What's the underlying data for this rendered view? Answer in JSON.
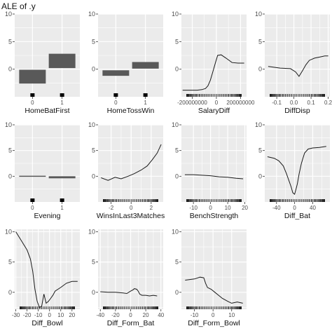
{
  "figure": {
    "title": "ALE of .y",
    "panel_background": "#ebebeb",
    "grid_color": "#ffffff",
    "line_color": "#1a1a1a",
    "bar_color": "#595959"
  },
  "chart_data": [
    {
      "type": "bar",
      "xlabel": "HomeBatFirst",
      "categories": [
        "0",
        "1"
      ],
      "boxes": [
        {
          "x": 0,
          "low": -2.6,
          "high": -0.1
        },
        {
          "x": 1,
          "low": 0.2,
          "high": 2.8
        }
      ],
      "ylim": [
        -5,
        10
      ],
      "yticks": [
        0,
        5,
        10
      ]
    },
    {
      "type": "bar",
      "xlabel": "HomeTossWin",
      "categories": [
        "0",
        "1"
      ],
      "boxes": [
        {
          "x": 0,
          "low": -1.2,
          "high": -0.2
        },
        {
          "x": 1,
          "low": 0.1,
          "high": 1.3
        }
      ],
      "ylim": [
        -5,
        10
      ],
      "yticks": [
        0,
        5,
        10
      ]
    },
    {
      "type": "line",
      "xlabel": "SalaryDiff",
      "x": [
        -280000000,
        -220000000,
        -160000000,
        -120000000,
        -90000000,
        -70000000,
        -50000000,
        -30000000,
        -10000000,
        10000000,
        40000000,
        80000000,
        130000000,
        180000000,
        230000000
      ],
      "y": [
        -3.8,
        -3.8,
        -3.8,
        -3.7,
        -3.5,
        -3.0,
        -2.0,
        -0.5,
        1.0,
        2.5,
        2.6,
        2.0,
        1.2,
        1.1,
        1.1
      ],
      "xlim": [
        -290000000,
        250000000
      ],
      "ylim": [
        -5,
        10
      ],
      "xticks": [
        {
          "value": -200000000,
          "label": "-200000000"
        },
        {
          "value": 0,
          "label": "0"
        },
        {
          "value": 200000000,
          "label": "200000000"
        }
      ],
      "yticks": [
        0,
        5,
        10
      ]
    },
    {
      "type": "line",
      "xlabel": "DiffDisp",
      "x": [
        -0.15,
        -0.08,
        -0.02,
        0.01,
        0.03,
        0.05,
        0.07,
        0.09,
        0.12,
        0.15,
        0.18,
        0.2
      ],
      "y": [
        0.5,
        0.2,
        0.1,
        -0.5,
        -1.3,
        -0.3,
        0.8,
        1.6,
        2.0,
        2.2,
        2.4,
        2.4
      ],
      "xlim": [
        -0.17,
        0.21
      ],
      "ylim": [
        -5,
        10
      ],
      "xticks": [
        {
          "value": -0.1,
          "label": "-0.1"
        },
        {
          "value": 0.0,
          "label": "0.0"
        },
        {
          "value": 0.1,
          "label": "0.1"
        },
        {
          "value": 0.2,
          "label": "0.2"
        }
      ],
      "yticks": [
        0,
        5,
        10
      ]
    },
    {
      "type": "bar",
      "xlabel": "Evening",
      "categories": [
        "0",
        "1"
      ],
      "boxes": [
        {
          "x": 0,
          "low": 0.0,
          "high": 0.1
        },
        {
          "x": 1,
          "low": -0.4,
          "high": 0.0
        }
      ],
      "ylim": [
        -5,
        10
      ],
      "yticks": [
        0,
        5,
        10
      ]
    },
    {
      "type": "line",
      "xlabel": "WinsInLast3Matches",
      "x": [
        -3,
        -2.3,
        -1.6,
        -1,
        -0.3,
        0.3,
        1,
        1.6,
        2.1,
        2.6,
        3
      ],
      "y": [
        -0.3,
        -0.8,
        -0.2,
        -0.5,
        0.0,
        0.5,
        1.2,
        2.0,
        3.2,
        4.5,
        6.2
      ],
      "xlim": [
        -3.3,
        3.2
      ],
      "ylim": [
        -5,
        10
      ],
      "xticks": [
        {
          "value": -2,
          "label": "-2"
        },
        {
          "value": 0,
          "label": "0"
        },
        {
          "value": 2,
          "label": "2"
        }
      ],
      "yticks": [
        0,
        5,
        10
      ]
    },
    {
      "type": "line",
      "xlabel": "BenchStrength",
      "x": [
        -15,
        -10,
        -5,
        0,
        5,
        10,
        15,
        19
      ],
      "y": [
        0.3,
        0.3,
        0.2,
        0.1,
        -0.1,
        -0.2,
        -0.4,
        -0.5
      ],
      "xlim": [
        -17,
        21
      ],
      "ylim": [
        -5,
        10
      ],
      "xticks": [
        {
          "value": -10,
          "label": "-10"
        },
        {
          "value": 0,
          "label": "0"
        },
        {
          "value": 10,
          "label": "10"
        },
        {
          "value": 20,
          "label": "20"
        }
      ],
      "yticks": [
        0,
        5,
        10
      ]
    },
    {
      "type": "line",
      "xlabel": "Diff_Bat",
      "x": [
        -60,
        -45,
        -35,
        -25,
        -18,
        -12,
        -8,
        -4,
        0,
        3,
        6,
        10,
        15,
        22,
        30,
        40,
        55,
        70
      ],
      "y": [
        3.8,
        3.5,
        3.0,
        2.0,
        0.5,
        -1.0,
        -2.0,
        -3.2,
        -3.5,
        -2.5,
        -1.5,
        0.5,
        2.5,
        4.5,
        5.3,
        5.5,
        5.6,
        5.8
      ],
      "xlim": [
        -66,
        78
      ],
      "ylim": [
        -5,
        10
      ],
      "xticks": [
        {
          "value": -40,
          "label": "-40"
        },
        {
          "value": 0,
          "label": "0"
        },
        {
          "value": 40,
          "label": "40"
        },
        {
          "value": 80,
          "label": "80"
        }
      ],
      "yticks": [
        0,
        5,
        10
      ]
    },
    {
      "type": "line",
      "xlabel": "Diff_Bowl",
      "x": [
        -30,
        -25,
        -20,
        -17,
        -15,
        -13,
        -11,
        -9,
        -7,
        -5,
        -3,
        -1,
        1,
        3,
        5,
        10,
        15,
        20,
        25
      ],
      "y": [
        10.0,
        8.5,
        7.0,
        5.5,
        3.5,
        0.5,
        -1.5,
        -2.5,
        -2.3,
        -0.3,
        -1.8,
        -1.5,
        -1.0,
        -0.5,
        0.2,
        0.8,
        1.5,
        1.8,
        1.8
      ],
      "xlim": [
        -31,
        27
      ],
      "ylim": [
        -2.8,
        10.4
      ],
      "xticks": [
        {
          "value": -30,
          "label": "-30"
        },
        {
          "value": -20,
          "label": "-20"
        },
        {
          "value": -10,
          "label": "-10"
        },
        {
          "value": 0,
          "label": "0"
        },
        {
          "value": 10,
          "label": "10"
        },
        {
          "value": 20,
          "label": "20"
        }
      ],
      "yticks": [
        0,
        5,
        10
      ]
    },
    {
      "type": "line",
      "xlabel": "Diff_Form_Bat",
      "x": [
        -40,
        -30,
        -20,
        -10,
        -5,
        0,
        3,
        5,
        8,
        10,
        12,
        15,
        20,
        25,
        30,
        35
      ],
      "y": [
        0.1,
        0.0,
        0.0,
        -0.1,
        -0.2,
        0.2,
        0.4,
        0.6,
        0.5,
        0.2,
        -0.3,
        -0.5,
        -0.5,
        -0.6,
        -0.5,
        -0.6
      ],
      "xlim": [
        -43,
        43
      ],
      "ylim": [
        -2.8,
        10.4
      ],
      "xticks": [
        {
          "value": -40,
          "label": "-40"
        },
        {
          "value": -20,
          "label": "-20"
        },
        {
          "value": 0,
          "label": "0"
        },
        {
          "value": 20,
          "label": "20"
        },
        {
          "value": 40,
          "label": "40"
        }
      ],
      "yticks": [
        0,
        5,
        10
      ]
    },
    {
      "type": "line",
      "xlabel": "Diff_Form_Bowl",
      "x": [
        -15,
        -10,
        -7,
        -5,
        -4,
        -3,
        -1,
        1,
        3,
        5,
        8,
        10,
        13,
        16
      ],
      "y": [
        2.0,
        2.2,
        2.5,
        2.4,
        1.5,
        0.8,
        0.5,
        0.0,
        -0.5,
        -1.0,
        -1.5,
        -1.8,
        -1.6,
        -1.8
      ],
      "xlim": [
        -17,
        18
      ],
      "ylim": [
        -2.8,
        10.4
      ],
      "xticks": [
        {
          "value": -10,
          "label": "-10"
        },
        {
          "value": 0,
          "label": "0"
        },
        {
          "value": 10,
          "label": "10"
        }
      ],
      "yticks": [
        0,
        5,
        10
      ]
    }
  ]
}
